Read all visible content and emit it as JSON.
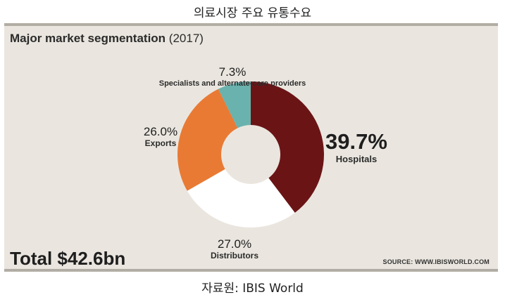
{
  "page": {
    "caption_top": "의료시장 주요 유통수요",
    "caption_bottom": "자료원: IBIS World"
  },
  "panel": {
    "title_main": "Major market segmentation",
    "title_year": "(2017)",
    "total": "Total $42.6bn",
    "source": "SOURCE: WWW.IBISWORLD.COM"
  },
  "colors": {
    "hospitals": "#6b1416",
    "distributors": "#ffffff",
    "exports": "#e97a34",
    "specialists": "#6ab2ad",
    "panel_bg": "#eae6df"
  },
  "chart_data": {
    "type": "pie",
    "title": "Major market segmentation (2017)",
    "total": "Total $42.6bn",
    "series": [
      {
        "name": "Hospitals",
        "value": 39.7,
        "label": "39.7%"
      },
      {
        "name": "Distributors",
        "value": 27.0,
        "label": "27.0%"
      },
      {
        "name": "Exports",
        "value": 26.0,
        "label": "26.0%"
      },
      {
        "name": "Specialists and alternate-care providers",
        "value": 7.3,
        "label": "7.3%"
      }
    ]
  }
}
